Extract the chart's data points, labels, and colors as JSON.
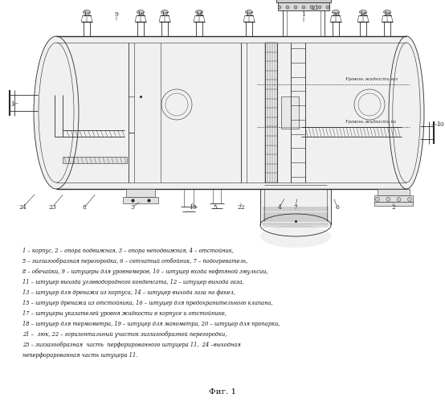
{
  "fig_label": "Фиг. 1",
  "bg_color": "#ffffff",
  "line_color": "#2a2a2a",
  "legend_lines": [
    "1 – корпус, 2 – опора подвижная, 3 – опора неподвижная, 4 – отстойник,",
    "5 – зигзагообразная перегородка, 6 – сетчатый отбойник, 7 – подогреватель,",
    "8 – обечайки, 9 – штуцеры для уровнемеров, 10 – штуцер входа нефтяной эмульсии,",
    "11 – штуцер выхода углеводородного конденсата, 12 – штуцер выхода газа,",
    "13 – штуцер для дренажа из корпуса, 14 – штуцер выхода газа на факел,",
    "15 – штуцер дренажа из отстойника, 16 – штуцер для предохранительного клапана,",
    "17 – штуцеры указателей уровня жидкости в корпусе и отстойнике,",
    "18 – штуцер для термометра, 19 – штуцер для манометра, 20 – штуцер для пропарки,",
    "21 –  люк, 22 – горизонтальный участок зигзагообразной перегородки,",
    "23 – зигзагообразная  часть  перфорированного штуцера 11,  24 –выходная",
    "неперфорированная часть штуцера 11."
  ]
}
